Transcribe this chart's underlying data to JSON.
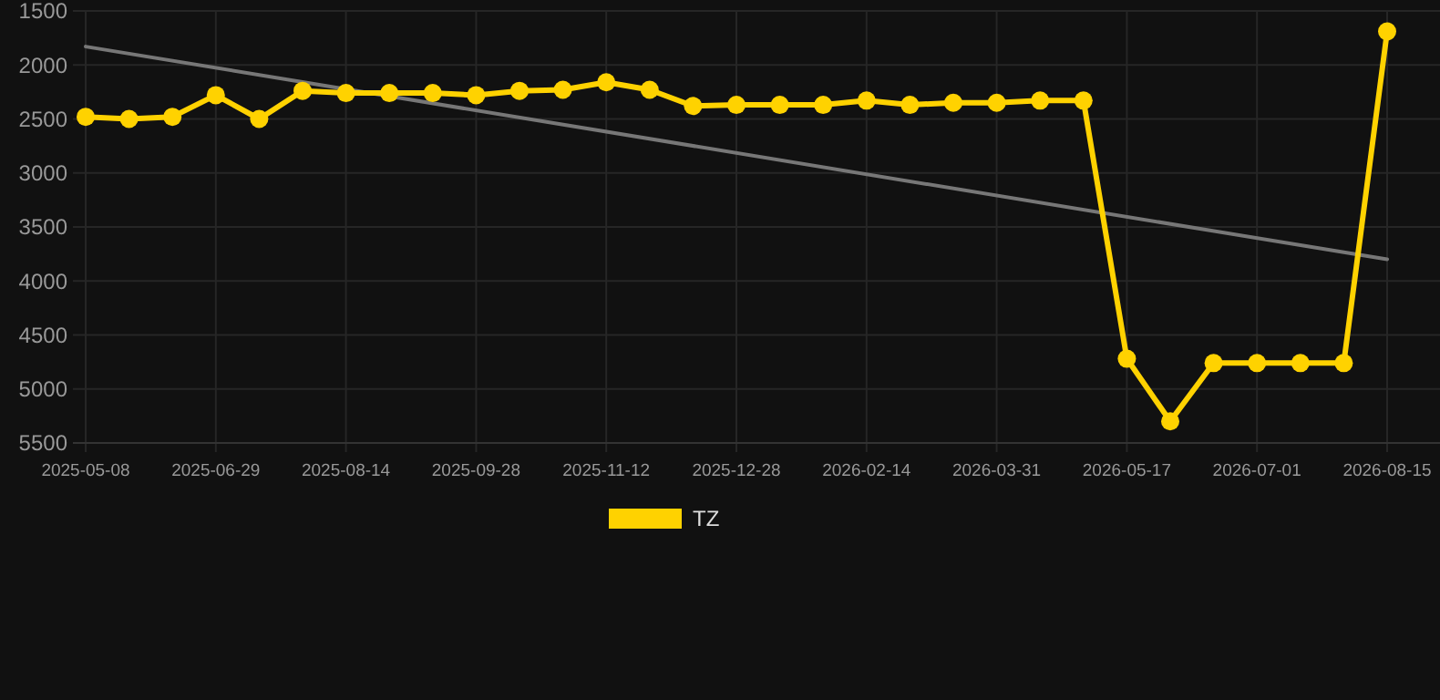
{
  "chart_data": {
    "type": "line",
    "categories": [
      "2025-05-08",
      null,
      null,
      "2025-06-29",
      null,
      null,
      "2025-08-14",
      null,
      null,
      "2025-09-28",
      null,
      null,
      "2025-11-12",
      null,
      null,
      "2025-12-28",
      null,
      null,
      "2026-02-14",
      null,
      null,
      "2026-03-31",
      null,
      null,
      "2026-05-17",
      null,
      null,
      "2026-07-01",
      null,
      null,
      "2026-08-15"
    ],
    "series": [
      {
        "name": "TZ",
        "color": "#ffd200",
        "marker": "circle",
        "values": [
          2480,
          2500,
          2480,
          2280,
          2500,
          2240,
          2260,
          2260,
          2260,
          2280,
          2240,
          2230,
          2160,
          2230,
          2380,
          2370,
          2370,
          2370,
          2330,
          2370,
          2350,
          2350,
          2330,
          2330,
          4720,
          5300,
          4760,
          4760,
          4760,
          4760,
          1690
        ]
      },
      {
        "type": "line",
        "color": "#777777",
        "marker": "none",
        "values": [
          1830,
          null,
          null,
          null,
          null,
          null,
          null,
          null,
          null,
          null,
          null,
          null,
          null,
          null,
          null,
          null,
          null,
          null,
          null,
          null,
          null,
          null,
          null,
          null,
          null,
          null,
          null,
          null,
          null,
          null,
          3800
        ]
      }
    ],
    "ylim": [
      5500,
      1500
    ],
    "yticks": [
      1500,
      2000,
      2500,
      3000,
      3500,
      4000,
      4500,
      5000,
      5500
    ],
    "grid": true,
    "legend": "bottom",
    "line_style": "solid"
  }
}
